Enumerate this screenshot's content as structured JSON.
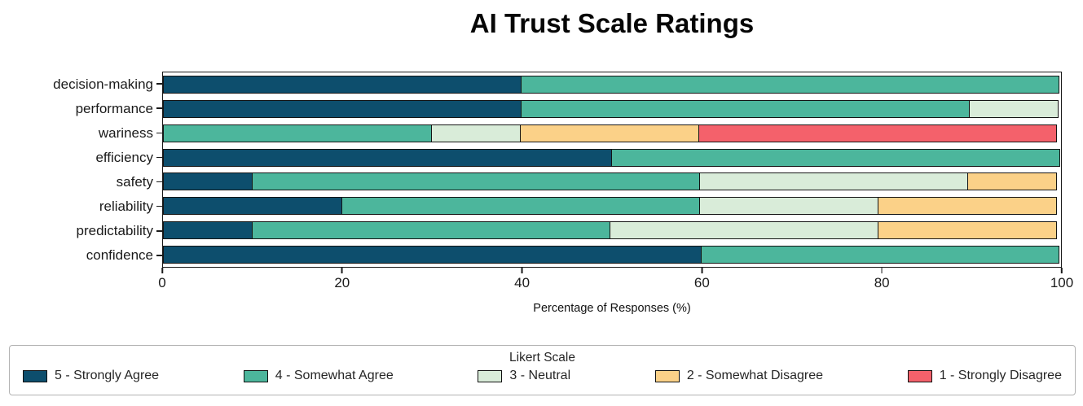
{
  "title": "AI Trust Scale Ratings",
  "chart_data": {
    "type": "bar",
    "orientation": "horizontal",
    "stacked": true,
    "title": "AI Trust Scale Ratings",
    "categories": [
      "decision-making",
      "performance",
      "wariness",
      "efficiency",
      "safety",
      "reliability",
      "predictability",
      "confidence"
    ],
    "series": [
      {
        "name": "5 - Strongly Agree",
        "color": "#0d4e6d",
        "values": [
          40,
          40,
          0,
          50,
          10,
          20,
          10,
          60
        ]
      },
      {
        "name": "4 - Somewhat Agree",
        "color": "#4cb69c",
        "values": [
          60,
          50,
          30,
          50,
          50,
          40,
          40,
          40
        ]
      },
      {
        "name": "3 - Neutral",
        "color": "#d9ecd9",
        "values": [
          0,
          10,
          10,
          0,
          30,
          20,
          30,
          0
        ]
      },
      {
        "name": "2 - Somewhat Disagree",
        "color": "#fbd188",
        "values": [
          0,
          0,
          20,
          0,
          10,
          20,
          20,
          0
        ]
      },
      {
        "name": "1 - Strongly Disagree",
        "color": "#f4616b",
        "values": [
          0,
          0,
          40,
          0,
          0,
          0,
          0,
          0
        ]
      }
    ],
    "xlabel": "Percentage of Responses (%)",
    "xlim": [
      0,
      100
    ],
    "xticks": [
      0,
      20,
      40,
      60,
      80,
      100
    ],
    "legend_title": "Likert Scale",
    "legend_position": "bottom",
    "grid": false,
    "bar_edge_color": "#141414"
  },
  "colors": {
    "spine": "#1a1a1a",
    "legend_border": "#b3b3b3",
    "background": "#ffffff"
  }
}
